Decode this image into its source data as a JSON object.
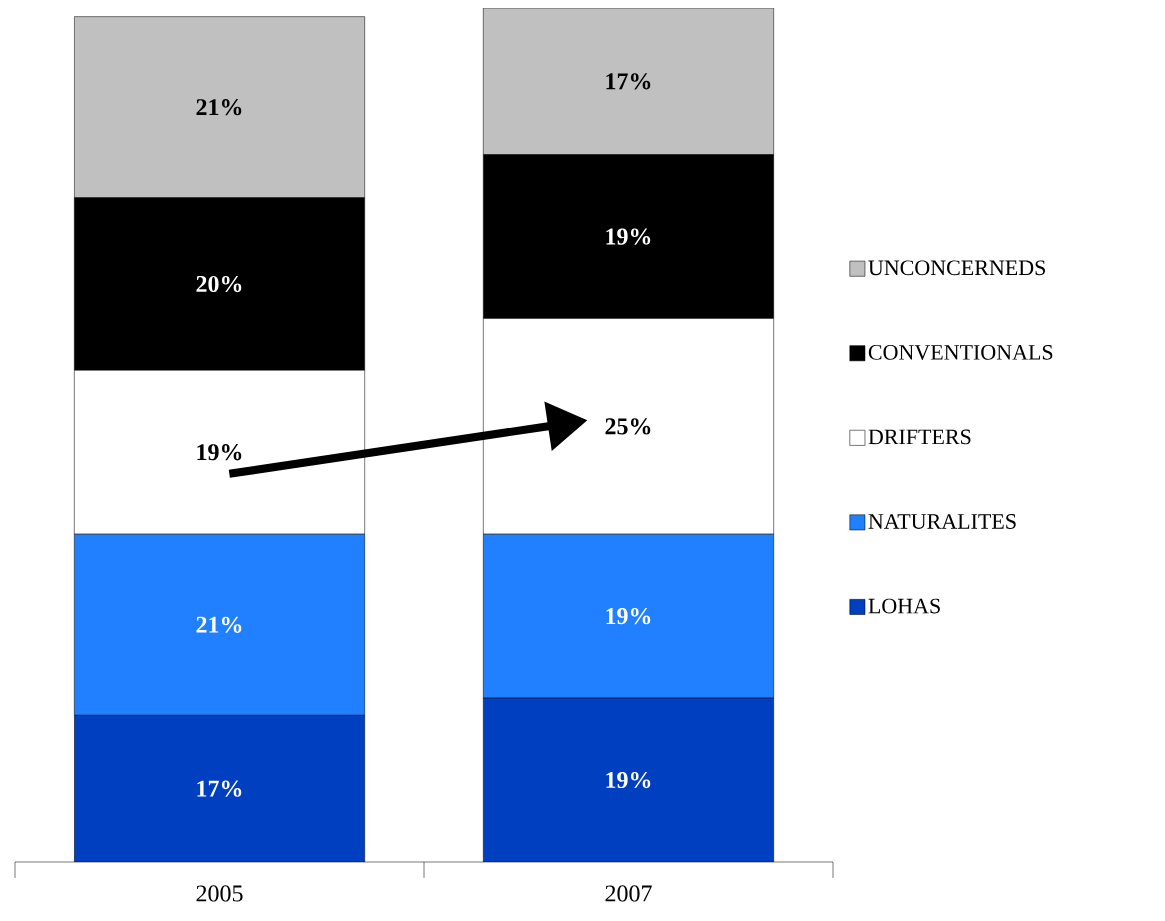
{
  "chart_data": {
    "type": "bar",
    "stacked": true,
    "categories": [
      "2005",
      "2007"
    ],
    "legend": "right",
    "series": [
      {
        "name": "LOHAS",
        "color": "#0040c0",
        "values": [
          17,
          19
        ],
        "value_labels": [
          "17%",
          "19%"
        ]
      },
      {
        "name": "NATURALITES",
        "color": "#2080ff",
        "values": [
          21,
          19
        ],
        "value_labels": [
          "21%",
          "19%"
        ]
      },
      {
        "name": "DRIFTERS",
        "color": "#ffffff",
        "values": [
          19,
          25
        ],
        "value_labels": [
          "19%",
          "25%"
        ]
      },
      {
        "name": "CONVENTIONALS",
        "color": "#000000",
        "values": [
          20,
          19
        ],
        "value_labels": [
          "20%",
          "19%"
        ]
      },
      {
        "name": "UNCONCERNEDS",
        "color": "#c0c0c0",
        "values": [
          21,
          17
        ],
        "value_labels": [
          "21%",
          "17%"
        ]
      }
    ]
  }
}
